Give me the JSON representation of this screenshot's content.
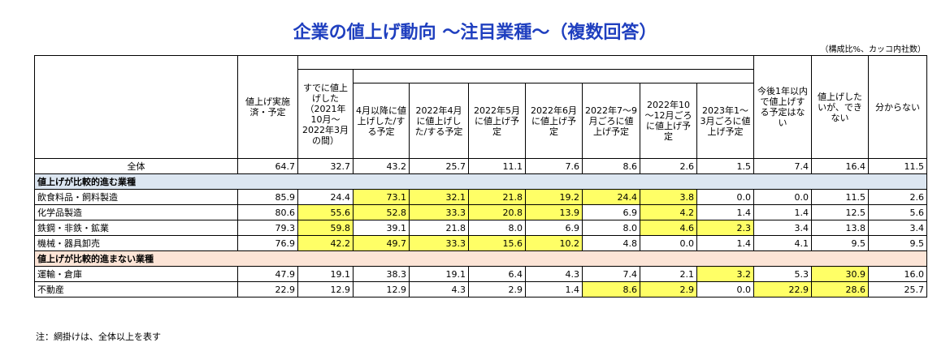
{
  "title": "企業の値上げ動向 ～注目業種～（複数回答）",
  "unit_note": "（構成比%、カッコ内社数）",
  "footnote": "注：網掛けは、全体以上を表す",
  "table": {
    "header": [
      "値上げ実施済・予定",
      "すでに値上げした（2021年10月～2022年3月の間）",
      "4月以降に値上げした/する予定",
      "2022年4月に値上げした/する予定",
      "2022年5月に値上げ予定",
      "2022年6月に値上げ予定",
      "2022年7～9月ごろに値上げ予定",
      "2022年10～12月ごろに値上げ予定",
      "2023年1～3月ごろに値上げ予定",
      "今後1年以内で値上げする予定はない",
      "値上げしたいが、できない",
      "分からない"
    ],
    "rows": [
      {
        "label": "全体",
        "values": [
          "64.7",
          "32.7",
          "43.2",
          "25.7",
          "11.1",
          "7.6",
          "8.6",
          "2.6",
          "1.5",
          "7.4",
          "16.4",
          "11.5"
        ]
      },
      {
        "section": "値上げが比較的進む業種",
        "color": "#dce6f1"
      },
      {
        "label": "飲食料品・飼料製造",
        "values": [
          "85.9",
          "24.4",
          "73.1",
          "32.1",
          "21.8",
          "19.2",
          "24.4",
          "3.8",
          "0.0",
          "0.0",
          "11.5",
          "2.6"
        ]
      },
      {
        "label": "化学品製造",
        "values": [
          "80.6",
          "55.6",
          "52.8",
          "33.3",
          "20.8",
          "13.9",
          "6.9",
          "4.2",
          "1.4",
          "1.4",
          "12.5",
          "5.6"
        ]
      },
      {
        "label": "鉄鋼・非鉄・鉱業",
        "values": [
          "79.3",
          "59.8",
          "39.1",
          "21.8",
          "8.0",
          "6.9",
          "8.0",
          "4.6",
          "2.3",
          "3.4",
          "13.8",
          "3.4"
        ]
      },
      {
        "label": "機械・器具卸売",
        "values": [
          "76.9",
          "42.2",
          "49.7",
          "33.3",
          "15.6",
          "10.2",
          "4.8",
          "0.0",
          "1.4",
          "4.1",
          "9.5",
          "9.5"
        ]
      },
      {
        "section": "値上げが比較的進まない業種",
        "color": "#fce4d6"
      },
      {
        "label": "運輸・倉庫",
        "values": [
          "47.9",
          "19.1",
          "38.3",
          "19.1",
          "6.4",
          "4.3",
          "7.4",
          "2.1",
          "3.2",
          "5.3",
          "30.9",
          "16.0"
        ]
      },
      {
        "label": "不動産",
        "values": [
          "22.9",
          "12.9",
          "12.9",
          "4.3",
          "2.9",
          "1.4",
          "8.6",
          "2.9",
          "0.0",
          "22.9",
          "28.6",
          "25.7"
        ]
      }
    ]
  }
}
